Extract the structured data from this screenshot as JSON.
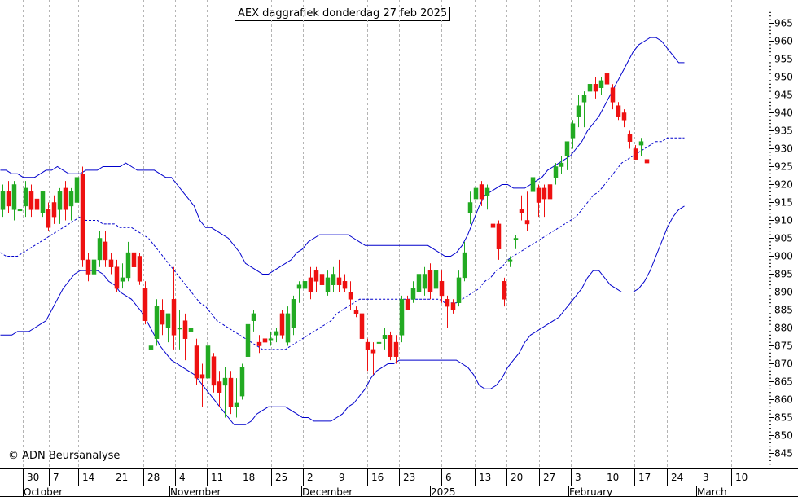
{
  "chart_data": {
    "type": "candlestick",
    "title": "AEX daggrafiek donderdag 27 feb 2025",
    "copyright": "© ADN Beursanalyse",
    "ylim": [
      840,
      970
    ],
    "yticks": [
      845,
      850,
      855,
      860,
      865,
      870,
      875,
      880,
      885,
      890,
      895,
      900,
      905,
      910,
      915,
      920,
      925,
      930,
      935,
      940,
      945,
      950,
      955,
      960,
      965
    ],
    "x_day_labels": [
      "30",
      "7",
      "14",
      "21",
      "28",
      "4",
      "11",
      "18",
      "25",
      "2",
      "9",
      "16",
      "23",
      "6",
      "13",
      "20",
      "27",
      "3",
      "10",
      "17",
      "24",
      "3",
      "10"
    ],
    "x_month_labels": [
      "October",
      "November",
      "December",
      "2025",
      "February",
      "March"
    ],
    "colors": {
      "up": "#22aa22",
      "down": "#ee1111",
      "band": "#0000cc",
      "grid": "#b4b4b4"
    },
    "candles": [
      {
        "o": 913,
        "h": 920,
        "l": 911,
        "c": 918
      },
      {
        "o": 918,
        "h": 921,
        "l": 912,
        "c": 914
      },
      {
        "o": 913,
        "h": 921,
        "l": 910,
        "c": 920
      },
      {
        "o": 913,
        "h": 916,
        "l": 906,
        "c": 913
      },
      {
        "o": 914,
        "h": 921,
        "l": 911,
        "c": 919
      },
      {
        "o": 918,
        "h": 920,
        "l": 911,
        "c": 913
      },
      {
        "o": 916,
        "h": 918,
        "l": 910,
        "c": 913
      },
      {
        "o": 912,
        "h": 918,
        "l": 911,
        "c": 918
      },
      {
        "o": 913,
        "h": 915,
        "l": 907,
        "c": 908
      },
      {
        "o": 915,
        "h": 917,
        "l": 909,
        "c": 911
      },
      {
        "o": 913,
        "h": 919,
        "l": 909,
        "c": 918
      },
      {
        "o": 919,
        "h": 921,
        "l": 910,
        "c": 913
      },
      {
        "o": 914,
        "h": 919,
        "l": 910,
        "c": 918
      },
      {
        "o": 915,
        "h": 924,
        "l": 914,
        "c": 922
      },
      {
        "o": 923,
        "h": 925,
        "l": 897,
        "c": 899
      },
      {
        "o": 899,
        "h": 901,
        "l": 893,
        "c": 895
      },
      {
        "o": 895,
        "h": 901,
        "l": 894,
        "c": 899
      },
      {
        "o": 899,
        "h": 907,
        "l": 897,
        "c": 905
      },
      {
        "o": 904,
        "h": 907,
        "l": 897,
        "c": 899
      },
      {
        "o": 899,
        "h": 901,
        "l": 895,
        "c": 897
      },
      {
        "o": 897,
        "h": 899,
        "l": 890,
        "c": 891
      },
      {
        "o": 893,
        "h": 898,
        "l": 891,
        "c": 894
      },
      {
        "o": 894,
        "h": 904,
        "l": 893,
        "c": 901
      },
      {
        "o": 901,
        "h": 903,
        "l": 896,
        "c": 897
      },
      {
        "o": 900,
        "h": 901,
        "l": 892,
        "c": 893
      },
      {
        "o": 891,
        "h": 893,
        "l": 881,
        "c": 882
      },
      {
        "o": 874,
        "h": 876,
        "l": 870,
        "c": 875
      },
      {
        "o": 877,
        "h": 888,
        "l": 875,
        "c": 886
      },
      {
        "o": 885,
        "h": 888,
        "l": 878,
        "c": 881
      },
      {
        "o": 880,
        "h": 884,
        "l": 876,
        "c": 884
      },
      {
        "o": 888,
        "h": 897,
        "l": 874,
        "c": 878
      },
      {
        "o": 880,
        "h": 885,
        "l": 874,
        "c": 880
      },
      {
        "o": 882,
        "h": 884,
        "l": 871,
        "c": 877
      },
      {
        "o": 879,
        "h": 883,
        "l": 876,
        "c": 880
      },
      {
        "o": 875,
        "h": 877,
        "l": 864,
        "c": 866
      },
      {
        "o": 867,
        "h": 870,
        "l": 858,
        "c": 866
      },
      {
        "o": 866,
        "h": 876,
        "l": 861,
        "c": 875
      },
      {
        "o": 872,
        "h": 873,
        "l": 862,
        "c": 864
      },
      {
        "o": 865,
        "h": 868,
        "l": 858,
        "c": 862
      },
      {
        "o": 864,
        "h": 869,
        "l": 855,
        "c": 866
      },
      {
        "o": 866,
        "h": 868,
        "l": 856,
        "c": 858
      },
      {
        "o": 858,
        "h": 866,
        "l": 855,
        "c": 859
      },
      {
        "o": 861,
        "h": 870,
        "l": 860,
        "c": 869
      },
      {
        "o": 872,
        "h": 882,
        "l": 869,
        "c": 881
      },
      {
        "o": 882,
        "h": 885,
        "l": 879,
        "c": 884
      },
      {
        "o": 876,
        "h": 878,
        "l": 873,
        "c": 875
      },
      {
        "o": 877,
        "h": 878,
        "l": 873,
        "c": 876
      },
      {
        "o": 877,
        "h": 879,
        "l": 875,
        "c": 877
      },
      {
        "o": 878,
        "h": 880,
        "l": 876,
        "c": 879
      },
      {
        "o": 884,
        "h": 885,
        "l": 877,
        "c": 878
      },
      {
        "o": 876,
        "h": 886,
        "l": 875,
        "c": 884
      },
      {
        "o": 880,
        "h": 889,
        "l": 878,
        "c": 888
      },
      {
        "o": 891,
        "h": 893,
        "l": 887,
        "c": 892
      },
      {
        "o": 891,
        "h": 895,
        "l": 888,
        "c": 893
      },
      {
        "o": 894,
        "h": 897,
        "l": 888,
        "c": 890
      },
      {
        "o": 896,
        "h": 897,
        "l": 890,
        "c": 893
      },
      {
        "o": 895,
        "h": 898,
        "l": 891,
        "c": 892
      },
      {
        "o": 890,
        "h": 896,
        "l": 889,
        "c": 894
      },
      {
        "o": 892,
        "h": 897,
        "l": 890,
        "c": 895
      },
      {
        "o": 894,
        "h": 899,
        "l": 890,
        "c": 892
      },
      {
        "o": 893,
        "h": 895,
        "l": 890,
        "c": 891
      },
      {
        "o": 890,
        "h": 893,
        "l": 885,
        "c": 888
      },
      {
        "o": 885,
        "h": 886,
        "l": 883,
        "c": 884
      },
      {
        "o": 884,
        "h": 886,
        "l": 878,
        "c": 877
      },
      {
        "o": 876,
        "h": 877,
        "l": 868,
        "c": 874
      },
      {
        "o": 874,
        "h": 876,
        "l": 867,
        "c": 873
      },
      {
        "o": 876,
        "h": 877,
        "l": 868,
        "c": 876
      },
      {
        "o": 877,
        "h": 880,
        "l": 874,
        "c": 878
      },
      {
        "o": 878,
        "h": 879,
        "l": 871,
        "c": 872
      },
      {
        "o": 876,
        "h": 878,
        "l": 870,
        "c": 872
      },
      {
        "o": 878,
        "h": 889,
        "l": 876,
        "c": 888
      },
      {
        "o": 888,
        "h": 889,
        "l": 885,
        "c": 885
      },
      {
        "o": 888,
        "h": 893,
        "l": 887,
        "c": 891
      },
      {
        "o": 890,
        "h": 896,
        "l": 888,
        "c": 895
      },
      {
        "o": 891,
        "h": 897,
        "l": 889,
        "c": 895
      },
      {
        "o": 896,
        "h": 898,
        "l": 888,
        "c": 890
      },
      {
        "o": 891,
        "h": 897,
        "l": 889,
        "c": 896
      },
      {
        "o": 893,
        "h": 896,
        "l": 887,
        "c": 889
      },
      {
        "o": 888,
        "h": 889,
        "l": 880,
        "c": 886
      },
      {
        "o": 887,
        "h": 888,
        "l": 884,
        "c": 885
      },
      {
        "o": 887,
        "h": 896,
        "l": 886,
        "c": 894
      },
      {
        "o": 894,
        "h": 904,
        "l": 893,
        "c": 901
      },
      {
        "o": 912,
        "h": 918,
        "l": 909,
        "c": 915
      },
      {
        "o": 916,
        "h": 921,
        "l": 914,
        "c": 919
      },
      {
        "o": 920,
        "h": 921,
        "l": 914,
        "c": 916
      },
      {
        "o": 917,
        "h": 920,
        "l": 913,
        "c": 919
      },
      {
        "o": 909,
        "h": 910,
        "l": 907,
        "c": 908
      },
      {
        "o": 909,
        "h": 910,
        "l": 899,
        "c": 902
      },
      {
        "o": 893,
        "h": 894,
        "l": 886,
        "c": 888
      },
      {
        "o": 899,
        "h": 900,
        "l": 897,
        "c": 899
      },
      {
        "o": 905,
        "h": 906,
        "l": 902,
        "c": 905
      },
      {
        "o": 913,
        "h": 917,
        "l": 910,
        "c": 912
      },
      {
        "o": 910,
        "h": 918,
        "l": 907,
        "c": 909
      },
      {
        "o": 918,
        "h": 923,
        "l": 917,
        "c": 922
      },
      {
        "o": 919,
        "h": 920,
        "l": 911,
        "c": 915
      },
      {
        "o": 919,
        "h": 920,
        "l": 911,
        "c": 916
      },
      {
        "o": 920,
        "h": 921,
        "l": 914,
        "c": 916
      },
      {
        "o": 922,
        "h": 926,
        "l": 920,
        "c": 925
      },
      {
        "o": 925,
        "h": 928,
        "l": 923,
        "c": 926
      },
      {
        "o": 928,
        "h": 932,
        "l": 924,
        "c": 932
      },
      {
        "o": 933,
        "h": 938,
        "l": 930,
        "c": 937
      },
      {
        "o": 939,
        "h": 945,
        "l": 936,
        "c": 942
      },
      {
        "o": 943,
        "h": 946,
        "l": 936,
        "c": 945
      },
      {
        "o": 946,
        "h": 950,
        "l": 943,
        "c": 948
      },
      {
        "o": 948,
        "h": 950,
        "l": 944,
        "c": 946
      },
      {
        "o": 947,
        "h": 950,
        "l": 945,
        "c": 949
      },
      {
        "o": 951,
        "h": 953,
        "l": 947,
        "c": 948
      },
      {
        "o": 947,
        "h": 948,
        "l": 941,
        "c": 943
      },
      {
        "o": 942,
        "h": 943,
        "l": 938,
        "c": 939
      },
      {
        "o": 940,
        "h": 941,
        "l": 936,
        "c": 938
      },
      {
        "o": 934,
        "h": 935,
        "l": 930,
        "c": 932
      },
      {
        "o": 930,
        "h": 931,
        "l": 927,
        "c": 927
      },
      {
        "o": 931,
        "h": 933,
        "l": 928,
        "c": 932
      },
      {
        "o": 927,
        "h": 928,
        "l": 923,
        "c": 926
      }
    ],
    "bollinger_upper": [
      924,
      924,
      923,
      923,
      922,
      922,
      922,
      923,
      924,
      924,
      925,
      924,
      923,
      923,
      923,
      924,
      924,
      924,
      925,
      925,
      925,
      925,
      926,
      925,
      924,
      924,
      924,
      924,
      923,
      922,
      922,
      920,
      918,
      916,
      914,
      910,
      908,
      908,
      907,
      906,
      905,
      903,
      901,
      898,
      897,
      896,
      895,
      895,
      896,
      897,
      898,
      899,
      901,
      902,
      904,
      905,
      906,
      906,
      906,
      906,
      906,
      906,
      905,
      904,
      903,
      903,
      903,
      903,
      903,
      903,
      903,
      903,
      903,
      903,
      903,
      903,
      902,
      901,
      900,
      900,
      901,
      903,
      906,
      910,
      914,
      917,
      918,
      919,
      920,
      920,
      919,
      919,
      919,
      920,
      921,
      922,
      924,
      925,
      926,
      927,
      928,
      930,
      932,
      935,
      937,
      939,
      942,
      945,
      948,
      951,
      954,
      957,
      959,
      960,
      961,
      961,
      960,
      958,
      956,
      954,
      954
    ],
    "bollinger_mid": [
      901,
      900,
      900,
      900,
      901,
      902,
      903,
      904,
      905,
      906,
      907,
      908,
      909,
      910,
      911,
      910,
      910,
      910,
      909,
      909,
      909,
      908,
      908,
      908,
      907,
      906,
      905,
      903,
      901,
      899,
      897,
      895,
      893,
      891,
      889,
      887,
      886,
      884,
      882,
      881,
      880,
      879,
      878,
      877,
      876,
      875,
      874,
      874,
      874,
      874,
      874,
      875,
      876,
      877,
      878,
      879,
      880,
      881,
      882,
      884,
      885,
      886,
      887,
      888,
      888,
      888,
      888,
      888,
      888,
      888,
      888,
      888,
      888,
      888,
      888,
      888,
      888,
      888,
      887,
      887,
      887,
      888,
      889,
      890,
      891,
      893,
      894,
      896,
      897,
      899,
      900,
      901,
      902,
      903,
      904,
      905,
      906,
      907,
      908,
      909,
      910,
      911,
      913,
      915,
      917,
      918,
      920,
      922,
      924,
      926,
      927,
      928,
      929,
      930,
      931,
      932,
      932,
      933,
      933,
      933,
      933
    ],
    "bollinger_lower": [
      878,
      878,
      878,
      879,
      879,
      879,
      880,
      881,
      882,
      885,
      888,
      891,
      893,
      895,
      896,
      896,
      896,
      896,
      895,
      893,
      892,
      890,
      889,
      888,
      886,
      884,
      881,
      878,
      875,
      873,
      871,
      870,
      869,
      868,
      867,
      865,
      863,
      861,
      859,
      857,
      855,
      853,
      853,
      853,
      854,
      856,
      857,
      858,
      858,
      858,
      858,
      857,
      856,
      855,
      855,
      854,
      854,
      854,
      854,
      855,
      856,
      858,
      859,
      861,
      863,
      866,
      868,
      869,
      870,
      870,
      871,
      871,
      871,
      871,
      871,
      871,
      871,
      871,
      871,
      871,
      871,
      870,
      869,
      867,
      864,
      863,
      863,
      864,
      866,
      869,
      871,
      873,
      876,
      878,
      879,
      880,
      881,
      882,
      883,
      885,
      887,
      889,
      891,
      894,
      896,
      896,
      894,
      892,
      891,
      890,
      890,
      890,
      891,
      893,
      896,
      900,
      904,
      908,
      911,
      913,
      914
    ]
  }
}
